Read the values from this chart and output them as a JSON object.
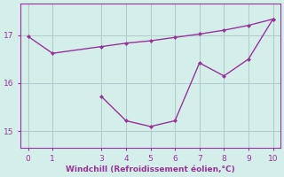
{
  "line1_x": [
    0,
    1,
    3,
    4,
    5,
    6,
    7,
    8,
    9,
    10
  ],
  "line1_y": [
    16.97,
    16.62,
    16.76,
    16.83,
    16.88,
    16.95,
    17.02,
    17.1,
    17.2,
    17.33
  ],
  "line2_x": [
    3,
    4,
    5,
    6,
    7,
    8,
    9,
    10
  ],
  "line2_y": [
    15.72,
    15.22,
    15.1,
    15.22,
    16.42,
    16.15,
    16.5,
    17.33
  ],
  "line_color": "#993399",
  "bg_color": "#d4eeea",
  "grid_color": "#b0cccc",
  "xlabel": "Windchill (Refroidissement éolien,°C)",
  "xlabel_color": "#993399",
  "tick_color": "#993399",
  "spine_color": "#993399",
  "xlim": [
    -0.3,
    10.3
  ],
  "ylim": [
    14.65,
    17.65
  ],
  "yticks": [
    15,
    16,
    17
  ],
  "xticks": [
    0,
    1,
    3,
    4,
    5,
    6,
    7,
    8,
    9,
    10
  ],
  "xticklabels": [
    "0",
    "1",
    "3",
    "4",
    "5",
    "6",
    "7",
    "8",
    "9",
    "10"
  ]
}
